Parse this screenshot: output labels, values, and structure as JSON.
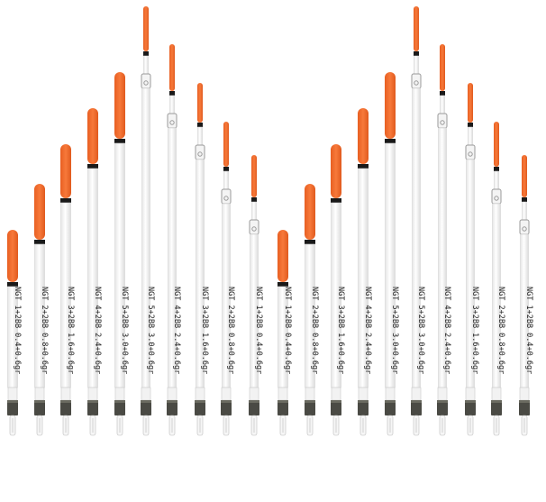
{
  "image": {
    "subject": "two sets of fishing pole floats",
    "colors": {
      "tip": "#f2692a",
      "band": "#1a1a1a",
      "stem": "#fafafa",
      "swivel": "#9a9a9a",
      "base": "#4a4a44"
    }
  },
  "left_set": [
    {
      "label": "NGT 1+2BB 0.4+0.6gr"
    },
    {
      "label": "NGT 2+2BB 0.8+0.6gr"
    },
    {
      "label": "NGT 3+2BB 1.6+0.6gr"
    },
    {
      "label": "NGT 4+2BB 2.4+0.6gr"
    },
    {
      "label": "NGT 5+2BB 3.0+0.6gr"
    },
    {
      "label": "NGT 5+2BB 3.0+0.6gr"
    },
    {
      "label": "NGT 4+2BB 2.4+0.6gr"
    },
    {
      "label": "NGT 3+2BB 1.6+0.6gr"
    },
    {
      "label": "NGT 2+2BB 0.8+0.6gr"
    },
    {
      "label": "NGT 1+2BB 0.4+0.6gr"
    }
  ],
  "right_set": [
    {
      "label": "NGT 1+2BB 0.4+0.6gr"
    },
    {
      "label": "NGT 2+2BB 0.8+0.6gr"
    },
    {
      "label": "NGT 3+2BB 1.6+0.6gr"
    },
    {
      "label": "NGT 4+2BB 2.4+0.6gr"
    },
    {
      "label": "NGT 5+2BB 3.0+0.6gr"
    },
    {
      "label": "NGT 5+2BB 3.0+0.6gr"
    },
    {
      "label": "NGT 4+2BB 2.4+0.6gr"
    },
    {
      "label": "NGT 3+2BB 1.6+0.6gr"
    },
    {
      "label": "NGT 2+2BB 0.8+0.6gr"
    },
    {
      "label": "NGT 1+2BB 0.4+0.6gr"
    }
  ]
}
